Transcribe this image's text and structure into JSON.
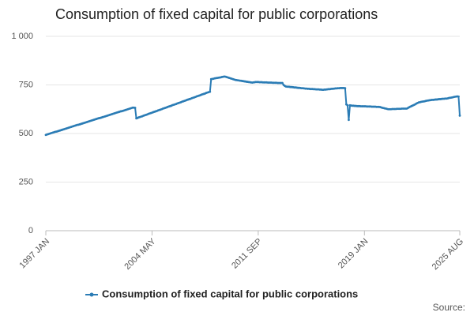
{
  "chart_data": {
    "type": "line",
    "title": "Consumption of fixed capital for public corporations",
    "source": "Source:",
    "categories": [
      "1997 JAN",
      null,
      null,
      null,
      null,
      null,
      null,
      null,
      null,
      null,
      null,
      null,
      null,
      null,
      null,
      null,
      null,
      null,
      null,
      null,
      null,
      null,
      null,
      null,
      null,
      null,
      null,
      null,
      null,
      null,
      null,
      null,
      null,
      null,
      null,
      null,
      null,
      null,
      null,
      null,
      null,
      null,
      null,
      null,
      null,
      null,
      null,
      null,
      null,
      null,
      null,
      null,
      null,
      null,
      null,
      null,
      null,
      null,
      null,
      null,
      null,
      null,
      null,
      null,
      null,
      null,
      null,
      null,
      null,
      null,
      null,
      null,
      null,
      null,
      null,
      null,
      null,
      null,
      null,
      null,
      null,
      null,
      null,
      null,
      null,
      null,
      null,
      null,
      "2004 MAY",
      null,
      null,
      null,
      null,
      null,
      null,
      null,
      null,
      null,
      null,
      null,
      null,
      null,
      null,
      null,
      null,
      null,
      null,
      null,
      null,
      null,
      null,
      null,
      null,
      null,
      null,
      null,
      null,
      null,
      null,
      null,
      null,
      null,
      null,
      null,
      null,
      null,
      null,
      null,
      null,
      null,
      null,
      null,
      null,
      null,
      null,
      null,
      null,
      null,
      null,
      null,
      null,
      null,
      null,
      null,
      null,
      null,
      null,
      null,
      null,
      null,
      null,
      null,
      null,
      null,
      null,
      null,
      null,
      null,
      null,
      null,
      null,
      null,
      null,
      null,
      null,
      null,
      null,
      null,
      null,
      null,
      null,
      null,
      null,
      null,
      null,
      null,
      "2011 SEP",
      null,
      null,
      null,
      null,
      null,
      null,
      null,
      null,
      null,
      null,
      null,
      null,
      null,
      null,
      null,
      null,
      null,
      null,
      null,
      null,
      null,
      null,
      null,
      null,
      null,
      null,
      null,
      null,
      null,
      null,
      null,
      null,
      null,
      null,
      null,
      null,
      null,
      null,
      null,
      null,
      null,
      null,
      null,
      null,
      null,
      null,
      null,
      null,
      null,
      null,
      null,
      null,
      null,
      null,
      null,
      null,
      null,
      null,
      null,
      null,
      null,
      null,
      null,
      null,
      null,
      null,
      null,
      null,
      null,
      null,
      null,
      null,
      null,
      null,
      null,
      null,
      null,
      null,
      null,
      null,
      null,
      null,
      null,
      null,
      null,
      null,
      null,
      "2019 JAN",
      null,
      null,
      null,
      null,
      null,
      null,
      null,
      null,
      null,
      null,
      null,
      null,
      null,
      null,
      null,
      null,
      null,
      null,
      null,
      null,
      null,
      null,
      null,
      null,
      null,
      null,
      null,
      null,
      null,
      null,
      null,
      null,
      null,
      null,
      null,
      null,
      null,
      null,
      null,
      null,
      null,
      null,
      null,
      null,
      null,
      null,
      null,
      null,
      null,
      null,
      null,
      null,
      null,
      null,
      null,
      null,
      null,
      null,
      null,
      null,
      null,
      null,
      null,
      null,
      null,
      null,
      null,
      null,
      null,
      null,
      null,
      null,
      null,
      null,
      null,
      null,
      null,
      null,
      "2025 AUG"
    ],
    "series": [
      {
        "name": "Consumption of fixed capital for public corporations",
        "color": "#2b7cb5",
        "values": [
          493,
          495,
          497,
          499,
          501,
          503,
          505,
          507,
          509,
          510,
          512,
          514,
          516,
          518,
          520,
          522,
          524,
          526,
          528,
          530,
          532,
          534,
          536,
          538,
          540,
          542,
          544,
          545,
          547,
          549,
          551,
          553,
          555,
          557,
          559,
          561,
          563,
          565,
          567,
          569,
          571,
          573,
          575,
          577,
          579,
          580,
          582,
          584,
          586,
          588,
          590,
          592,
          594,
          596,
          598,
          600,
          602,
          604,
          606,
          608,
          610,
          612,
          614,
          615,
          617,
          619,
          621,
          623,
          625,
          627,
          629,
          631,
          633,
          633,
          632,
          578,
          580,
          583,
          585,
          587,
          589,
          592,
          594,
          596,
          598,
          601,
          603,
          605,
          607,
          610,
          612,
          614,
          616,
          619,
          621,
          623,
          625,
          628,
          630,
          632,
          634,
          637,
          639,
          641,
          643,
          646,
          648,
          650,
          652,
          655,
          657,
          659,
          661,
          664,
          666,
          668,
          670,
          673,
          675,
          677,
          679,
          682,
          684,
          686,
          688,
          691,
          693,
          695,
          697,
          700,
          702,
          704,
          706,
          709,
          711,
          713,
          715,
          780,
          781,
          782,
          784,
          785,
          786,
          787,
          788,
          789,
          791,
          792,
          793,
          792,
          790,
          788,
          786,
          784,
          782,
          780,
          778,
          776,
          775,
          774,
          773,
          772,
          771,
          770,
          769,
          768,
          767,
          766,
          765,
          764,
          763,
          762,
          763,
          764,
          765,
          765,
          765,
          764,
          764,
          764,
          763,
          763,
          763,
          763,
          762,
          762,
          762,
          762,
          761,
          761,
          761,
          761,
          760,
          760,
          760,
          760,
          760,
          750,
          745,
          742,
          741,
          741,
          740,
          739,
          739,
          738,
          737,
          737,
          736,
          735,
          735,
          734,
          733,
          733,
          732,
          731,
          731,
          730,
          730,
          729,
          729,
          729,
          728,
          728,
          727,
          727,
          727,
          726,
          726,
          725,
          725,
          726,
          726,
          727,
          728,
          728,
          729,
          730,
          730,
          731,
          732,
          732,
          733,
          733,
          734,
          734,
          734,
          734,
          733,
          650,
          645,
          570,
          645,
          644,
          643,
          643,
          642,
          642,
          641,
          641,
          641,
          640,
          640,
          640,
          640,
          640,
          639,
          639,
          639,
          639,
          638,
          638,
          638,
          638,
          637,
          637,
          637,
          636,
          634,
          632,
          631,
          629,
          628,
          626,
          625,
          625,
          625,
          626,
          626,
          626,
          626,
          627,
          627,
          627,
          627,
          628,
          628,
          628,
          628,
          628,
          631,
          635,
          638,
          641,
          644,
          647,
          650,
          654,
          657,
          660,
          661,
          663,
          664,
          665,
          666,
          668,
          669,
          670,
          671,
          672,
          673,
          673,
          674,
          675,
          675,
          676,
          677,
          677,
          678,
          679,
          679,
          680,
          680,
          681,
          683,
          684,
          685,
          686,
          688,
          689,
          690,
          691,
          690,
          592
        ]
      }
    ],
    "ylim": [
      0,
      1000
    ],
    "yticks": [
      0,
      250,
      500,
      750,
      {
        "value": 1000,
        "label": "1 000"
      }
    ],
    "grid": true,
    "legend": "bottom"
  }
}
